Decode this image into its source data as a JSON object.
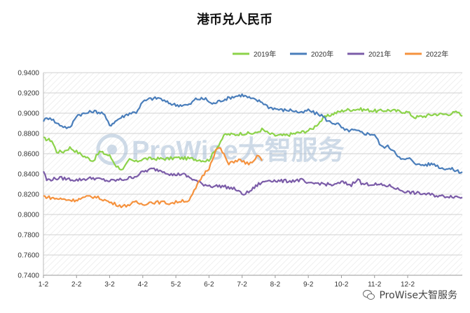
{
  "chart_data": {
    "type": "line",
    "title": "港币兑人民币",
    "xlabel": "",
    "ylabel": "",
    "ylim": [
      0.74,
      0.94
    ],
    "ytick_labels": [
      "0.7400",
      "0.7600",
      "0.7800",
      "0.8000",
      "0.8200",
      "0.8400",
      "0.8600",
      "0.8800",
      "0.9000",
      "0.9200",
      "0.9400"
    ],
    "x_ticks": [
      "1-2",
      "2-2",
      "3-2",
      "4-2",
      "5-2",
      "6-2",
      "7-2",
      "8-2",
      "9-2",
      "10-2",
      "11-2",
      "12-2"
    ],
    "grid": true,
    "legend_position": "top-right",
    "series": [
      {
        "name": "2019年",
        "color": "#8cd34a",
        "points": [
          [
            0,
            0.875
          ],
          [
            0.25,
            0.873
          ],
          [
            0.4,
            0.862
          ],
          [
            0.6,
            0.862
          ],
          [
            0.8,
            0.866
          ],
          [
            1,
            0.862
          ],
          [
            1.2,
            0.858
          ],
          [
            1.5,
            0.853
          ],
          [
            1.7,
            0.862
          ],
          [
            2,
            0.858
          ],
          [
            2.2,
            0.848
          ],
          [
            2.4,
            0.844
          ],
          [
            2.6,
            0.854
          ],
          [
            2.8,
            0.852
          ],
          [
            3,
            0.855
          ],
          [
            3.5,
            0.855
          ],
          [
            3.8,
            0.855
          ],
          [
            4,
            0.856
          ],
          [
            4.5,
            0.855
          ],
          [
            4.9,
            0.853
          ],
          [
            5,
            0.854
          ],
          [
            5.2,
            0.864
          ],
          [
            5.4,
            0.875
          ],
          [
            5.5,
            0.879
          ],
          [
            5.8,
            0.879
          ],
          [
            6,
            0.88
          ],
          [
            6.4,
            0.88
          ],
          [
            6.6,
            0.884
          ],
          [
            6.8,
            0.88
          ],
          [
            7,
            0.878
          ],
          [
            7.3,
            0.878
          ],
          [
            7.6,
            0.88
          ],
          [
            7.9,
            0.882
          ],
          [
            8.1,
            0.884
          ],
          [
            8.3,
            0.89
          ],
          [
            8.5,
            0.896
          ],
          [
            8.8,
            0.9
          ],
          [
            9.1,
            0.903
          ],
          [
            9.5,
            0.904
          ],
          [
            9.8,
            0.903
          ],
          [
            10.1,
            0.902
          ],
          [
            10.4,
            0.903
          ],
          [
            10.7,
            0.902
          ],
          [
            11,
            0.901
          ],
          [
            11.2,
            0.896
          ],
          [
            11.5,
            0.897
          ],
          [
            11.8,
            0.899
          ],
          [
            12.2,
            0.899
          ],
          [
            12.5,
            0.901
          ],
          [
            12.65,
            0.897
          ]
        ]
      },
      {
        "name": "2020年",
        "color": "#4a7ebb",
        "points": [
          [
            0,
            0.893
          ],
          [
            0.2,
            0.896
          ],
          [
            0.4,
            0.89
          ],
          [
            0.6,
            0.887
          ],
          [
            0.8,
            0.885
          ],
          [
            1,
            0.898
          ],
          [
            1.3,
            0.9
          ],
          [
            1.5,
            0.902
          ],
          [
            1.8,
            0.9
          ],
          [
            2,
            0.888
          ],
          [
            2.3,
            0.895
          ],
          [
            2.6,
            0.9
          ],
          [
            2.8,
            0.901
          ],
          [
            3,
            0.911
          ],
          [
            3.2,
            0.914
          ],
          [
            3.5,
            0.915
          ],
          [
            3.7,
            0.911
          ],
          [
            4,
            0.908
          ],
          [
            4.4,
            0.908
          ],
          [
            4.6,
            0.914
          ],
          [
            4.9,
            0.914
          ],
          [
            5.1,
            0.909
          ],
          [
            5.4,
            0.913
          ],
          [
            5.7,
            0.916
          ],
          [
            6,
            0.918
          ],
          [
            6.3,
            0.914
          ],
          [
            6.6,
            0.911
          ],
          [
            6.8,
            0.906
          ],
          [
            7.2,
            0.903
          ],
          [
            7.5,
            0.903
          ],
          [
            7.8,
            0.9
          ],
          [
            8,
            0.903
          ],
          [
            8.2,
            0.9
          ],
          [
            8.4,
            0.898
          ],
          [
            8.6,
            0.892
          ],
          [
            8.9,
            0.889
          ],
          [
            9.1,
            0.883
          ],
          [
            9.4,
            0.883
          ],
          [
            9.7,
            0.88
          ],
          [
            10,
            0.879
          ],
          [
            10.2,
            0.867
          ],
          [
            10.4,
            0.867
          ],
          [
            10.6,
            0.863
          ],
          [
            10.8,
            0.854
          ],
          [
            11.1,
            0.855
          ],
          [
            11.3,
            0.849
          ],
          [
            11.5,
            0.849
          ],
          [
            11.8,
            0.85
          ],
          [
            12,
            0.846
          ],
          [
            12.3,
            0.845
          ],
          [
            12.6,
            0.842
          ],
          [
            12.65,
            0.842
          ]
        ]
      },
      {
        "name": "2021年",
        "color": "#7b5ca8",
        "points": [
          [
            0,
            0.843
          ],
          [
            0.1,
            0.834
          ],
          [
            0.5,
            0.836
          ],
          [
            1,
            0.834
          ],
          [
            1.5,
            0.836
          ],
          [
            2,
            0.833
          ],
          [
            2.5,
            0.835
          ],
          [
            2.8,
            0.838
          ],
          [
            3,
            0.842
          ],
          [
            3.3,
            0.845
          ],
          [
            3.6,
            0.843
          ],
          [
            3.9,
            0.839
          ],
          [
            4.2,
            0.84
          ],
          [
            4.5,
            0.835
          ],
          [
            4.8,
            0.83
          ],
          [
            5.1,
            0.828
          ],
          [
            5.4,
            0.828
          ],
          [
            5.8,
            0.825
          ],
          [
            6,
            0.82
          ],
          [
            6.2,
            0.822
          ],
          [
            6.5,
            0.83
          ],
          [
            6.8,
            0.834
          ],
          [
            7.1,
            0.833
          ],
          [
            7.4,
            0.833
          ],
          [
            7.8,
            0.834
          ],
          [
            8,
            0.83
          ],
          [
            8.3,
            0.831
          ],
          [
            8.5,
            0.83
          ],
          [
            8.8,
            0.829
          ],
          [
            9,
            0.832
          ],
          [
            9.3,
            0.829
          ],
          [
            9.5,
            0.836
          ],
          [
            9.6,
            0.83
          ],
          [
            9.9,
            0.83
          ],
          [
            10.2,
            0.829
          ],
          [
            10.5,
            0.828
          ],
          [
            10.7,
            0.825
          ],
          [
            11,
            0.822
          ],
          [
            11.3,
            0.821
          ],
          [
            11.6,
            0.82
          ],
          [
            12,
            0.818
          ],
          [
            12.3,
            0.818
          ],
          [
            12.65,
            0.817
          ]
        ]
      },
      {
        "name": "2022年",
        "color": "#f5923e",
        "points": [
          [
            0,
            0.818
          ],
          [
            0.3,
            0.816
          ],
          [
            0.6,
            0.815
          ],
          [
            0.9,
            0.814
          ],
          [
            1.2,
            0.816
          ],
          [
            1.4,
            0.818
          ],
          [
            1.6,
            0.817
          ],
          [
            1.8,
            0.815
          ],
          [
            2,
            0.812
          ],
          [
            2.2,
            0.81
          ],
          [
            2.4,
            0.808
          ],
          [
            2.6,
            0.81
          ],
          [
            2.8,
            0.812
          ],
          [
            3,
            0.81
          ],
          [
            3.2,
            0.812
          ],
          [
            3.4,
            0.812
          ],
          [
            3.6,
            0.812
          ],
          [
            3.8,
            0.811
          ],
          [
            4,
            0.812
          ],
          [
            4.2,
            0.814
          ],
          [
            4.4,
            0.813
          ],
          [
            4.6,
            0.826
          ],
          [
            4.8,
            0.838
          ],
          [
            5,
            0.846
          ],
          [
            5.1,
            0.855
          ],
          [
            5.2,
            0.863
          ],
          [
            5.3,
            0.866
          ],
          [
            5.4,
            0.862
          ],
          [
            5.5,
            0.856
          ],
          [
            5.6,
            0.849
          ],
          [
            5.7,
            0.852
          ],
          [
            5.9,
            0.854
          ],
          [
            6.1,
            0.851
          ],
          [
            6.3,
            0.85
          ],
          [
            6.5,
            0.859
          ],
          [
            6.6,
            0.853
          ]
        ]
      }
    ]
  },
  "watermark": {
    "text": "ProWise大智服务",
    "color": "#a8bfd6"
  },
  "footer": {
    "source_label": "ProWise大智服务",
    "icon": "wechat-icon"
  }
}
